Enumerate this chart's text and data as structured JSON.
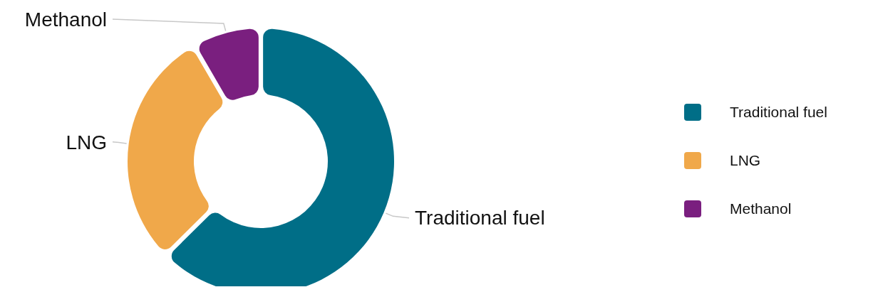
{
  "chart_data": {
    "type": "donut",
    "categories": [
      "Traditional fuel",
      "LNG",
      "Methanol"
    ],
    "values": [
      63,
      29,
      8
    ],
    "colors": [
      "#006e87",
      "#f0a84a",
      "#7a1f7f"
    ],
    "legend": "right"
  }
}
